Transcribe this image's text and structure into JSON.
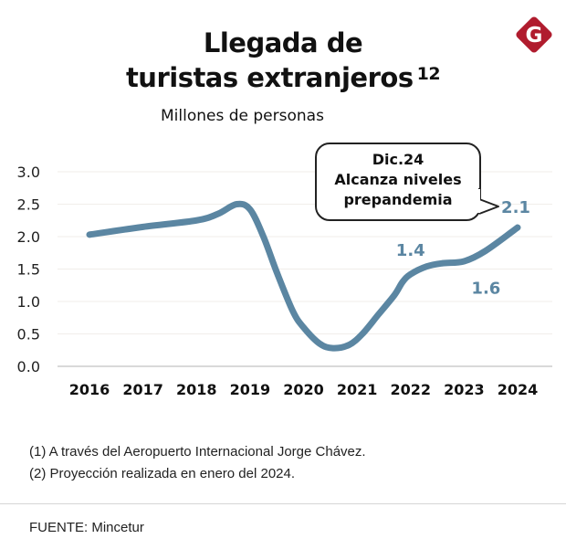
{
  "header": {
    "title_line1": "Llegada de",
    "title_line2": "turistas extranjeros",
    "title_superscript": "12",
    "subtitle": "Millones de personas",
    "logo_letter": "G",
    "logo_color": "#b01c2e"
  },
  "callout": {
    "line1": "Dic.24",
    "line2": "Alcanza niveles",
    "line3": "prepandemia"
  },
  "notes": [
    "(1) A través del Aeropuerto Internacional Jorge Chávez.",
    "(2) Proyección realizada en enero del 2024."
  ],
  "source": "FUENTE: Mincetur",
  "chart_data": {
    "type": "line",
    "title": "Llegada de turistas extranjeros",
    "subtitle": "Millones de personas",
    "xlabel": "",
    "ylabel": "",
    "x": [
      "2016",
      "2017",
      "2018",
      "2019",
      "2020",
      "2021",
      "2022",
      "2023",
      "2024"
    ],
    "ylim": [
      0,
      3.0
    ],
    "yticks": [
      "0.0",
      "0.5",
      "1.0",
      "1.5",
      "2.0",
      "2.5",
      "3.0"
    ],
    "grid": true,
    "line_color": "#5b86a2",
    "series": [
      {
        "name": "Llegada de turistas extranjeros",
        "points": [
          {
            "x": 2016.0,
            "y": 2.03
          },
          {
            "x": 2017.0,
            "y": 2.15
          },
          {
            "x": 2018.0,
            "y": 2.25
          },
          {
            "x": 2018.4,
            "y": 2.35
          },
          {
            "x": 2018.75,
            "y": 2.5
          },
          {
            "x": 2019.0,
            "y": 2.42
          },
          {
            "x": 2019.25,
            "y": 2.0
          },
          {
            "x": 2019.5,
            "y": 1.45
          },
          {
            "x": 2019.8,
            "y": 0.85
          },
          {
            "x": 2020.0,
            "y": 0.6
          },
          {
            "x": 2020.3,
            "y": 0.35
          },
          {
            "x": 2020.55,
            "y": 0.28
          },
          {
            "x": 2020.85,
            "y": 0.33
          },
          {
            "x": 2021.1,
            "y": 0.5
          },
          {
            "x": 2021.4,
            "y": 0.8
          },
          {
            "x": 2021.7,
            "y": 1.1
          },
          {
            "x": 2021.85,
            "y": 1.3
          },
          {
            "x": 2022.0,
            "y": 1.42
          },
          {
            "x": 2022.3,
            "y": 1.54
          },
          {
            "x": 2022.6,
            "y": 1.59
          },
          {
            "x": 2023.0,
            "y": 1.62
          },
          {
            "x": 2023.4,
            "y": 1.78
          },
          {
            "x": 2024.0,
            "y": 2.14
          }
        ]
      }
    ],
    "annotations": [
      {
        "label": "1.4",
        "x": 2022.0,
        "y": 1.42,
        "position": "above-left"
      },
      {
        "label": "1.6",
        "x": 2023.0,
        "y": 1.6,
        "position": "below-right"
      },
      {
        "label": "2.1",
        "x": 2024.0,
        "y": 2.14,
        "position": "above"
      }
    ],
    "legend": "none"
  }
}
